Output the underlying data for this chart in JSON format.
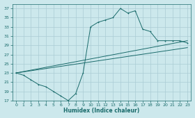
{
  "title": "",
  "xlabel": "Humidex (Indice chaleur)",
  "bg_color": "#cce8ec",
  "grid_color": "#aaccd4",
  "line_color": "#1a6b6b",
  "xlim": [
    -0.5,
    23.5
  ],
  "ylim": [
    17,
    38
  ],
  "xticks": [
    0,
    1,
    2,
    3,
    4,
    5,
    6,
    7,
    8,
    9,
    10,
    11,
    12,
    13,
    14,
    15,
    16,
    17,
    18,
    19,
    20,
    21,
    22,
    23
  ],
  "yticks": [
    17,
    19,
    21,
    23,
    25,
    27,
    29,
    31,
    33,
    35,
    37
  ],
  "line1_x": [
    0,
    1,
    2,
    3,
    4,
    5,
    6,
    7,
    8,
    9,
    10,
    11,
    12,
    13,
    14,
    15,
    16,
    17,
    18,
    19,
    20,
    21,
    22,
    23
  ],
  "line1_y": [
    23.0,
    22.5,
    21.5,
    20.5,
    20.0,
    19.0,
    18.0,
    17.0,
    18.5,
    23.0,
    33.0,
    34.0,
    34.5,
    35.0,
    37.0,
    36.0,
    36.5,
    32.5,
    32.0,
    30.0,
    30.0,
    30.0,
    30.0,
    29.5
  ],
  "line2_x": [
    0,
    23
  ],
  "line2_y": [
    23.0,
    30.0
  ],
  "line3_x": [
    0,
    23
  ],
  "line3_y": [
    23.0,
    28.5
  ],
  "xlabel_fontsize": 5.5,
  "tick_fontsize": 4.5,
  "lw": 0.7,
  "marker_size": 2.0
}
